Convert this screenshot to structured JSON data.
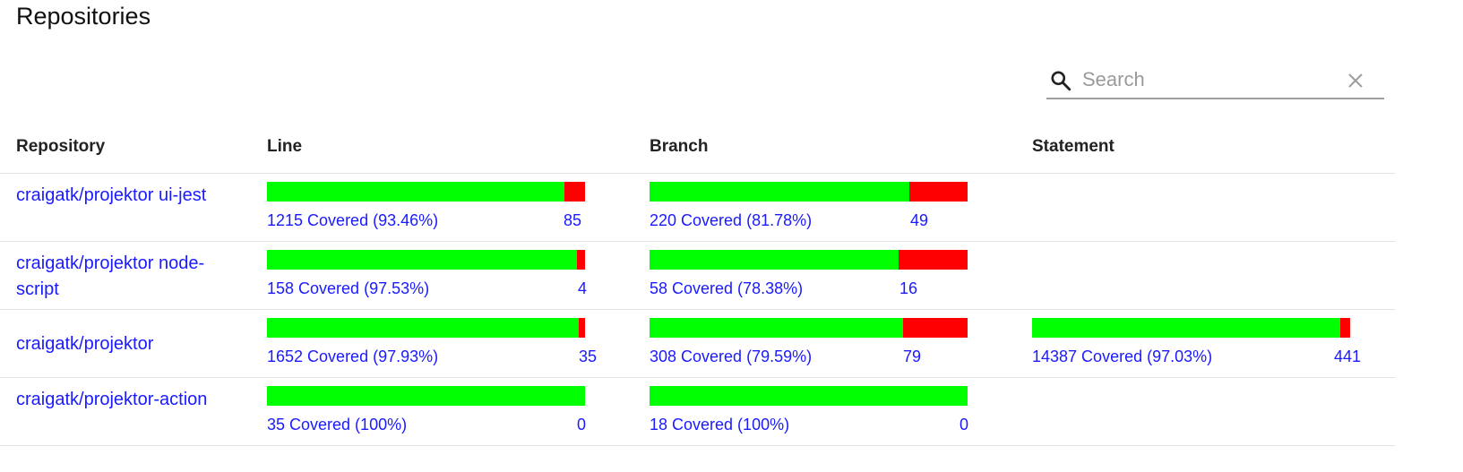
{
  "page": {
    "title": "Repositories"
  },
  "search": {
    "placeholder": "Search",
    "value": ""
  },
  "table": {
    "headers": {
      "repository": "Repository",
      "line": "Line",
      "branch": "Branch",
      "statement": "Statement"
    },
    "rows": [
      {
        "repo": "craigatk/projektor ui-jest",
        "line": {
          "covered_text": "1215 Covered (93.46%)",
          "uncovered_text": "85",
          "percent": 93.46
        },
        "branch": {
          "covered_text": "220 Covered (81.78%)",
          "uncovered_text": "49",
          "percent": 81.78
        }
      },
      {
        "repo": "craigatk/projektor node-script",
        "line": {
          "covered_text": "158 Covered (97.53%)",
          "uncovered_text": "4",
          "percent": 97.53
        },
        "branch": {
          "covered_text": "58 Covered (78.38%)",
          "uncovered_text": "16",
          "percent": 78.38
        }
      },
      {
        "repo": "craigatk/projektor",
        "line": {
          "covered_text": "1652 Covered (97.93%)",
          "uncovered_text": "35",
          "percent": 97.93
        },
        "branch": {
          "covered_text": "308 Covered (79.59%)",
          "uncovered_text": "79",
          "percent": 79.59
        },
        "statement": {
          "covered_text": "14387 Covered (97.03%)",
          "uncovered_text": "441",
          "percent": 97.03
        }
      },
      {
        "repo": "craigatk/projektor-action",
        "line": {
          "covered_text": "35 Covered (100%)",
          "uncovered_text": "0",
          "percent": 100
        },
        "branch": {
          "covered_text": "18 Covered (100%)",
          "uncovered_text": "0",
          "percent": 100
        }
      }
    ]
  },
  "colors": {
    "covered": "#00ff00",
    "uncovered": "#ff0000",
    "link": "#1a1aff"
  }
}
